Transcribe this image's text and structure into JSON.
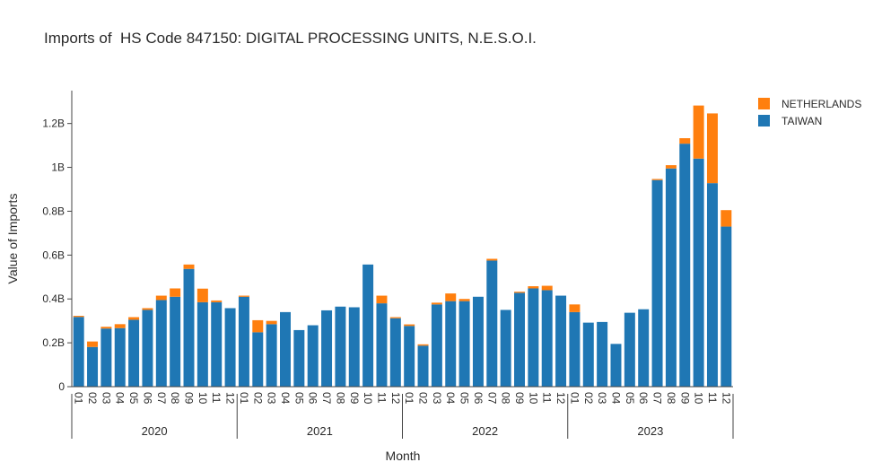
{
  "chart_data": {
    "type": "bar",
    "stacked": true,
    "title": "Imports of  HS Code 847150: DIGITAL PROCESSING UNITS, N.E.S.O.I.",
    "xlabel": "Month",
    "ylabel": "Value of Imports",
    "ylim": [
      0,
      1.35
    ],
    "y_unit": "B",
    "y_ticks": [
      "0",
      "0.2B",
      "0.4B",
      "0.6B",
      "0.8B",
      "1B",
      "1.2B"
    ],
    "y_tick_values": [
      0,
      0.2,
      0.4,
      0.6,
      0.8,
      1.0,
      1.2
    ],
    "legend_position": "top-right",
    "years": [
      "2020",
      "2021",
      "2022",
      "2023"
    ],
    "months": [
      "01",
      "02",
      "03",
      "04",
      "05",
      "06",
      "07",
      "08",
      "09",
      "10",
      "11",
      "12"
    ],
    "series": [
      {
        "name": "TAIWAN",
        "color": "#1f77b4",
        "values": [
          0.318,
          0.181,
          0.265,
          0.267,
          0.305,
          0.35,
          0.395,
          0.41,
          0.537,
          0.385,
          0.385,
          0.358,
          0.41,
          0.248,
          0.285,
          0.34,
          0.258,
          0.28,
          0.348,
          0.365,
          0.362,
          0.557,
          0.38,
          0.312,
          0.277,
          0.187,
          0.375,
          0.39,
          0.39,
          0.41,
          0.575,
          0.35,
          0.428,
          0.448,
          0.44,
          0.415,
          0.34,
          0.292,
          0.295,
          0.195,
          0.337,
          0.353,
          0.942,
          0.995,
          1.108,
          1.04,
          0.928,
          0.73
        ]
      },
      {
        "name": "NETHERLANDS",
        "color": "#ff7f0e",
        "values": [
          0.005,
          0.025,
          0.008,
          0.018,
          0.012,
          0.008,
          0.02,
          0.038,
          0.02,
          0.062,
          0.008,
          0.0,
          0.005,
          0.055,
          0.015,
          0.0,
          0.0,
          0.0,
          0.0,
          0.0,
          0.0,
          0.0,
          0.035,
          0.005,
          0.007,
          0.006,
          0.008,
          0.035,
          0.01,
          0.0,
          0.008,
          0.0,
          0.005,
          0.01,
          0.02,
          0.0,
          0.035,
          0.0,
          0.0,
          0.0,
          0.0,
          0.0,
          0.005,
          0.015,
          0.025,
          0.242,
          0.318,
          0.075
        ]
      }
    ]
  }
}
